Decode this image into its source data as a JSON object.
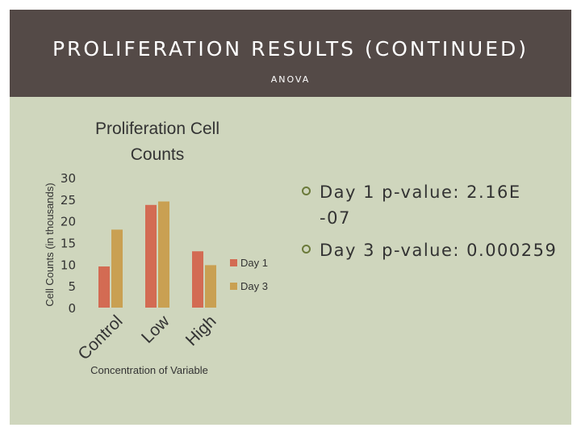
{
  "slide": {
    "title": "PROLIFERATION RESULTS (CONTINUED)",
    "subtitle": "ANOVA",
    "colors": {
      "header": "#544a47",
      "background": "#cfd6bd"
    }
  },
  "bullets": [
    {
      "label": "Day 1 p-value:",
      "value": "2.16E -07"
    },
    {
      "label": "Day 3 p-value:",
      "value": "0.000259"
    }
  ],
  "chart_data": {
    "type": "bar",
    "title": "Proliferation Cell Counts",
    "xlabel": "Concentration of Variable",
    "ylabel": "Cell Counts (in thousands)",
    "categories": [
      "Control",
      "Low",
      "High"
    ],
    "series": [
      {
        "name": "Day 1",
        "values": [
          9.5,
          23.7,
          13
        ],
        "color": "#d36b53"
      },
      {
        "name": "Day 3",
        "values": [
          18,
          24.5,
          9.8
        ],
        "color": "#c9a052"
      }
    ],
    "yticks": [
      "0",
      "5",
      "10",
      "15",
      "20",
      "25",
      "30"
    ],
    "ylim": [
      0,
      30
    ],
    "grid": false,
    "legend": "right"
  }
}
